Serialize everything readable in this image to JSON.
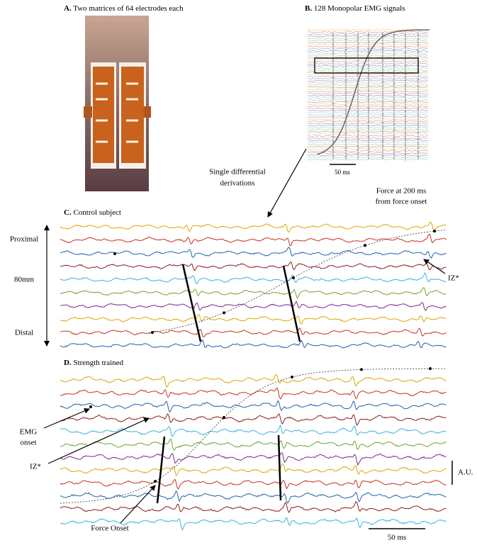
{
  "panels": [
    {
      "label": "A.",
      "title": "Two matrices of 64 electrodes each"
    },
    {
      "label": "B.",
      "title": "128 Monopolar EMG signals",
      "scale_bar": "50 ms",
      "derivation_note": [
        "Single differential",
        "derivations"
      ]
    },
    {
      "label": "C.",
      "title": "Control subject",
      "force_note": [
        "Force at 200 ms",
        "from force onset"
      ],
      "axis_labels": {
        "top": "Proximal",
        "middle": "80mm",
        "bottom": "Distal"
      },
      "iz_label": "IZ*"
    },
    {
      "label": "D.",
      "title": "Strength trained",
      "emg_onset": [
        "EMG",
        "onset"
      ],
      "iz_label": "IZ*",
      "amplitude_label": "A.U.",
      "force_onset": "Force Onset",
      "scale_bar": "50 ms"
    }
  ]
}
